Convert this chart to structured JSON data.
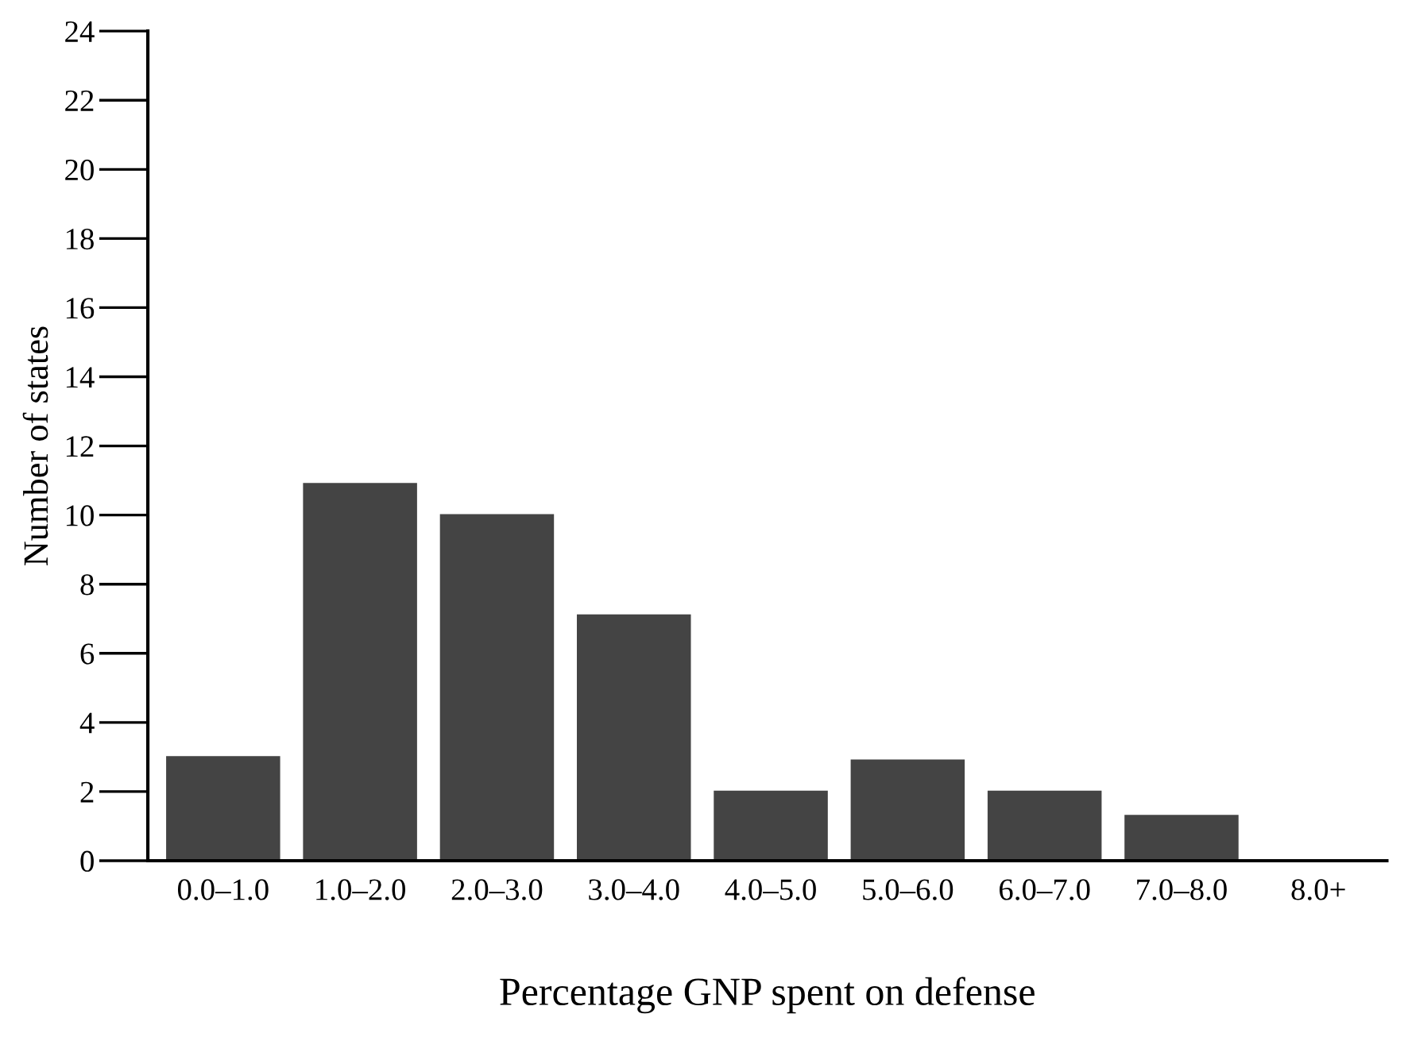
{
  "chart_data": {
    "type": "bar",
    "xlabel": "Percentage GNP spent on defense",
    "ylabel": "Number of states",
    "categories": [
      "0.0–1.0",
      "1.0–2.0",
      "2.0–3.0",
      "3.0–4.0",
      "4.0–5.0",
      "5.0–6.0",
      "6.0–7.0",
      "7.0–8.0",
      "8.0+"
    ],
    "values": [
      3,
      10.9,
      10,
      7.1,
      2,
      2.9,
      2,
      1.3,
      0
    ],
    "color": "#444444",
    "ylim": [
      0,
      24
    ],
    "yticks": [
      0,
      2,
      4,
      6,
      8,
      10,
      12,
      14,
      16,
      18,
      20,
      22,
      24
    ],
    "grid": false
  }
}
